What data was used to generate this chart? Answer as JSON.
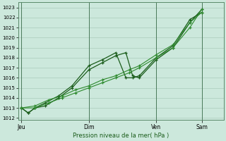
{
  "title": "Pression niveau de la mer( hPa )",
  "ylabel_values": [
    1012,
    1013,
    1014,
    1015,
    1016,
    1017,
    1018,
    1019,
    1020,
    1021,
    1022,
    1023
  ],
  "ylim": [
    1011.8,
    1023.5
  ],
  "background_color": "#cce8dc",
  "grid_color_major": "#aaccbb",
  "grid_color_minor": "#c0ddd0",
  "line_color_dark": "#1a5c1a",
  "line_color_light": "#2d8a2d",
  "xtick_labels": [
    "Jeu",
    "Dim",
    "Ven",
    "Sam"
  ],
  "xtick_positions": [
    0,
    40,
    80,
    107
  ],
  "xlim": [
    -2,
    120
  ],
  "series": {
    "s1_x": [
      0,
      4,
      8,
      14,
      22,
      30,
      40,
      48,
      56,
      62,
      66,
      70,
      80,
      90,
      100,
      107
    ],
    "s1_y": [
      1013.0,
      1012.5,
      1013.0,
      1013.2,
      1014.0,
      1015.0,
      1016.8,
      1017.5,
      1018.2,
      1018.5,
      1016.2,
      1016.0,
      1017.8,
      1019.0,
      1021.5,
      1022.8
    ],
    "s2_x": [
      0,
      4,
      8,
      14,
      22,
      30,
      40,
      48,
      56,
      62,
      66,
      70,
      80,
      90,
      100,
      107
    ],
    "s2_y": [
      1013.0,
      1012.5,
      1013.0,
      1013.5,
      1014.2,
      1015.2,
      1017.2,
      1017.8,
      1018.5,
      1016.0,
      1016.0,
      1016.2,
      1018.0,
      1019.2,
      1021.8,
      1022.5
    ],
    "s3_x": [
      0,
      8,
      16,
      24,
      32,
      40,
      48,
      56,
      64,
      70,
      80,
      90,
      100,
      107
    ],
    "s3_y": [
      1013.0,
      1013.2,
      1013.8,
      1014.2,
      1014.8,
      1015.2,
      1015.8,
      1016.2,
      1016.8,
      1017.2,
      1018.3,
      1019.3,
      1021.5,
      1022.5
    ],
    "s4_x": [
      0,
      8,
      16,
      24,
      32,
      40,
      48,
      56,
      64,
      70,
      80,
      90,
      100,
      107
    ],
    "s4_y": [
      1013.0,
      1013.0,
      1013.5,
      1014.0,
      1014.5,
      1015.0,
      1015.5,
      1016.0,
      1016.5,
      1017.0,
      1018.0,
      1019.0,
      1021.0,
      1022.8
    ]
  }
}
